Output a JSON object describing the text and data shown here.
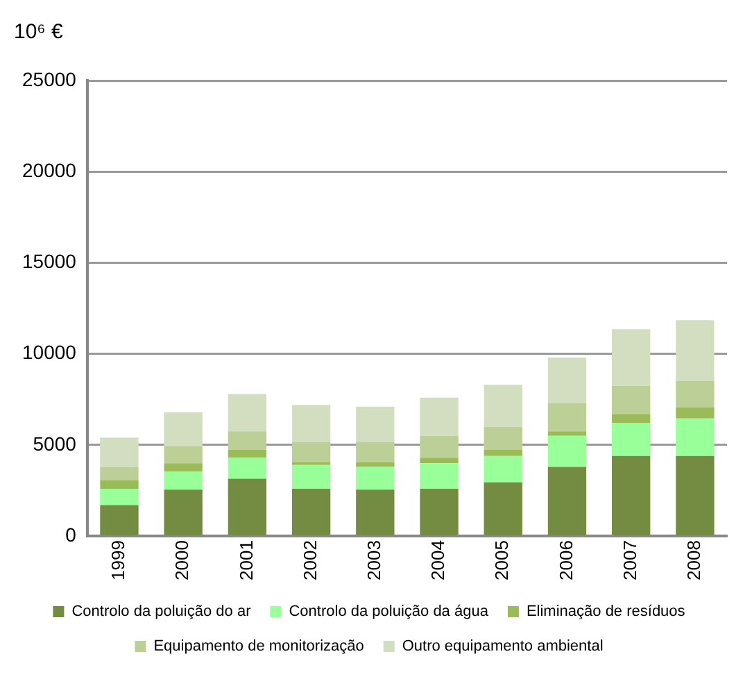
{
  "chart_data": {
    "type": "bar",
    "stacked": true,
    "ylabel": "10⁶ €",
    "categories": [
      "1999",
      "2000",
      "2001",
      "2002",
      "2003",
      "2004",
      "2005",
      "2006",
      "2007",
      "2008"
    ],
    "series": [
      {
        "name": "Controlo da poluição do ar",
        "color": "#748b42",
        "values": [
          1700,
          2550,
          3150,
          2600,
          2550,
          2600,
          2950,
          3800,
          4400,
          4400
        ]
      },
      {
        "name": "Controlo da poluição da água",
        "color": "#99ff99",
        "values": [
          900,
          1000,
          1150,
          1300,
          1250,
          1400,
          1450,
          1700,
          1800,
          2050
        ]
      },
      {
        "name": "Eliminação de resíduos",
        "color": "#9bbb59",
        "values": [
          450,
          450,
          450,
          150,
          250,
          300,
          350,
          250,
          500,
          600
        ]
      },
      {
        "name": "Equipamento de monitorização",
        "color": "#bbcf96",
        "values": [
          750,
          950,
          1000,
          1100,
          1100,
          1200,
          1250,
          1550,
          1550,
          1450
        ]
      },
      {
        "name": "Outro equipamento ambiental",
        "color": "#d3dec0",
        "values": [
          1600,
          1850,
          2050,
          2050,
          1950,
          2100,
          2300,
          2500,
          3100,
          3350
        ]
      }
    ],
    "ylim": [
      0,
      25000
    ],
    "yticks": [
      0,
      5000,
      10000,
      15000,
      20000,
      25000
    ],
    "grid": "y",
    "legend": "bottom"
  }
}
